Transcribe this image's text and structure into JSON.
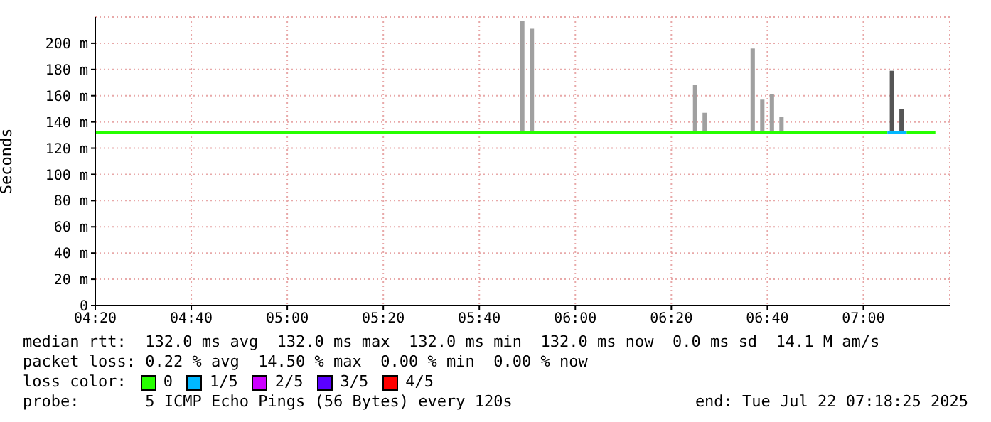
{
  "chart_data": {
    "type": "bar",
    "ylabel": "Seconds",
    "legend_title": "loss color:",
    "legend": "bottom",
    "grid": true,
    "xlim": [
      "2025-07-22T04:20",
      "2025-07-22T07:18"
    ],
    "xticks": [
      {
        "value": "2025-07-22T04:20",
        "label": "04:20"
      },
      {
        "value": "2025-07-22T04:40",
        "label": "04:40"
      },
      {
        "value": "2025-07-22T05:00",
        "label": "05:00"
      },
      {
        "value": "2025-07-22T05:20",
        "label": "05:20"
      },
      {
        "value": "2025-07-22T05:40",
        "label": "05:40"
      },
      {
        "value": "2025-07-22T06:00",
        "label": "06:00"
      },
      {
        "value": "2025-07-22T06:20",
        "label": "06:20"
      },
      {
        "value": "2025-07-22T06:40",
        "label": "06:40"
      },
      {
        "value": "2025-07-22T07:00",
        "label": "07:00"
      }
    ],
    "ylim": [
      0,
      220
    ],
    "yticks": [
      0,
      {
        "value": 20,
        "label": "20 m"
      },
      {
        "value": 40,
        "label": "40 m"
      },
      {
        "value": 60,
        "label": "60 m"
      },
      {
        "value": 80,
        "label": "80 m"
      },
      {
        "value": 100,
        "label": "100 m"
      },
      {
        "value": 120,
        "label": "120 m"
      },
      {
        "value": 140,
        "label": "140 m"
      },
      {
        "value": 160,
        "label": "160 m"
      },
      {
        "value": 180,
        "label": "180 m"
      },
      {
        "value": 200,
        "label": "200 m"
      }
    ],
    "series": [
      {
        "x": [
          "2025-07-22T05:49",
          "2025-07-22T05:51",
          "2025-07-22T06:25",
          "2025-07-22T06:27",
          "2025-07-22T06:37",
          "2025-07-22T06:39",
          "2025-07-22T06:41",
          "2025-07-22T06:43",
          "2025-07-22T07:06",
          "2025-07-22T07:08"
        ],
        "base": [
          132,
          132,
          132,
          132,
          132,
          132,
          132,
          132,
          132,
          132
        ],
        "values": [
          85,
          79,
          36,
          15,
          64,
          25,
          29,
          12,
          47,
          18
        ],
        "colors": [
          "#a0a0a0",
          "#a0a0a0",
          "#a0a0a0",
          "#a0a0a0",
          "#a0a0a0",
          "#a0a0a0",
          "#a0a0a0",
          "#a0a0a0",
          "#555555",
          "#555555"
        ]
      },
      {
        "type": "line",
        "name": "0",
        "color": "#26ff00",
        "x": [
          "2025-07-22T04:20",
          "2025-07-22T07:05",
          "2025-07-22T07:07",
          "2025-07-22T07:09",
          "2025-07-22T07:15"
        ],
        "values": [
          132,
          132,
          null,
          132,
          132
        ]
      },
      {
        "type": "line",
        "name": "1/5",
        "color": "#00b8ff",
        "x": [
          "2025-07-22T07:05",
          "2025-07-22T07:09"
        ],
        "values": [
          132,
          132
        ]
      },
      {
        "type": "line",
        "name": "2/5",
        "color": "#cc00ff"
      },
      {
        "type": "line",
        "name": "3/5",
        "color": "#5a00ff"
      },
      {
        "type": "line",
        "name": "4/5",
        "color": "#ff0000"
      }
    ],
    "annotations": [
      "median rtt:  132.0 ms avg  132.0 ms max  132.0 ms min  132.0 ms now  0.0 ms sd  14.1 M am/s",
      "packet loss: 0.22 % avg  14.50 % max  0.00 % min  0.00 % now",
      "probe:       5 ICMP Echo Pings (56 Bytes) every 120s",
      "end: Tue Jul 22 07:18:25 2025"
    ]
  }
}
